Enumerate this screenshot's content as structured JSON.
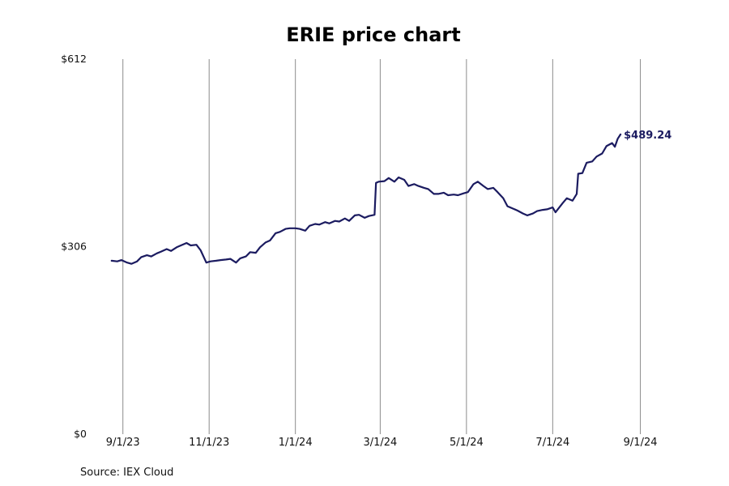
{
  "chart_data": {
    "type": "line",
    "title": "ERIE price chart",
    "source": "Source: IEX Cloud",
    "xlabel": "",
    "ylabel": "",
    "ylim": [
      0,
      612
    ],
    "y_ticks": [
      {
        "value": 0,
        "label": "$0"
      },
      {
        "value": 306,
        "label": "$306"
      },
      {
        "value": 612,
        "label": "$612"
      }
    ],
    "x_range": [
      "2023-08-27",
      "2024-09-15"
    ],
    "x_ticks": [
      {
        "date": "2023-09-01",
        "label": "9/1/23"
      },
      {
        "date": "2023-11-01",
        "label": "11/1/23"
      },
      {
        "date": "2024-01-01",
        "label": "1/1/24"
      },
      {
        "date": "2024-03-01",
        "label": "3/1/24"
      },
      {
        "date": "2024-05-01",
        "label": "5/1/24"
      },
      {
        "date": "2024-07-01",
        "label": "7/1/24"
      },
      {
        "date": "2024-09-01",
        "label": "9/1/24"
      }
    ],
    "grid": "vertical",
    "last_label": "$489.24",
    "colors": {
      "line": "#1b1b60",
      "grid": "#8c8c8c",
      "last_label": "#1b1b60"
    },
    "series": [
      {
        "points": [
          [
            "2023-08-24",
            283
          ],
          [
            "2023-08-28",
            282
          ],
          [
            "2023-08-31",
            284
          ],
          [
            "2023-09-04",
            280
          ],
          [
            "2023-09-07",
            278
          ],
          [
            "2023-09-11",
            282
          ],
          [
            "2023-09-14",
            289
          ],
          [
            "2023-09-18",
            292
          ],
          [
            "2023-09-21",
            290
          ],
          [
            "2023-09-25",
            295
          ],
          [
            "2023-09-28",
            298
          ],
          [
            "2023-10-02",
            302
          ],
          [
            "2023-10-05",
            299
          ],
          [
            "2023-10-09",
            305
          ],
          [
            "2023-10-12",
            308
          ],
          [
            "2023-10-16",
            312
          ],
          [
            "2023-10-19",
            308
          ],
          [
            "2023-10-23",
            309
          ],
          [
            "2023-10-26",
            300
          ],
          [
            "2023-10-30",
            280
          ],
          [
            "2023-11-02",
            282
          ],
          [
            "2023-11-06",
            283
          ],
          [
            "2023-11-09",
            284
          ],
          [
            "2023-11-13",
            285
          ],
          [
            "2023-11-16",
            286
          ],
          [
            "2023-11-20",
            280
          ],
          [
            "2023-11-23",
            287
          ],
          [
            "2023-11-27",
            290
          ],
          [
            "2023-11-30",
            297
          ],
          [
            "2023-12-04",
            296
          ],
          [
            "2023-12-07",
            305
          ],
          [
            "2023-12-11",
            313
          ],
          [
            "2023-12-14",
            316
          ],
          [
            "2023-12-18",
            328
          ],
          [
            "2023-12-21",
            330
          ],
          [
            "2023-12-25",
            335
          ],
          [
            "2023-12-28",
            336
          ],
          [
            "2024-01-01",
            336
          ],
          [
            "2024-01-04",
            335
          ],
          [
            "2024-01-08",
            332
          ],
          [
            "2024-01-11",
            340
          ],
          [
            "2024-01-15",
            343
          ],
          [
            "2024-01-18",
            342
          ],
          [
            "2024-01-22",
            346
          ],
          [
            "2024-01-25",
            344
          ],
          [
            "2024-01-29",
            348
          ],
          [
            "2024-02-01",
            347
          ],
          [
            "2024-02-05",
            352
          ],
          [
            "2024-02-08",
            348
          ],
          [
            "2024-02-12",
            357
          ],
          [
            "2024-02-15",
            358
          ],
          [
            "2024-02-19",
            353
          ],
          [
            "2024-02-22",
            356
          ],
          [
            "2024-02-26",
            358
          ],
          [
            "2024-02-27",
            410
          ],
          [
            "2024-02-29",
            412
          ],
          [
            "2024-03-04",
            413
          ],
          [
            "2024-03-07",
            418
          ],
          [
            "2024-03-11",
            412
          ],
          [
            "2024-03-14",
            419
          ],
          [
            "2024-03-18",
            415
          ],
          [
            "2024-03-21",
            405
          ],
          [
            "2024-03-25",
            408
          ],
          [
            "2024-03-28",
            405
          ],
          [
            "2024-04-01",
            402
          ],
          [
            "2024-04-04",
            400
          ],
          [
            "2024-04-08",
            392
          ],
          [
            "2024-04-11",
            392
          ],
          [
            "2024-04-15",
            394
          ],
          [
            "2024-04-18",
            390
          ],
          [
            "2024-04-22",
            391
          ],
          [
            "2024-04-25",
            390
          ],
          [
            "2024-04-29",
            393
          ],
          [
            "2024-05-02",
            395
          ],
          [
            "2024-05-06",
            408
          ],
          [
            "2024-05-09",
            412
          ],
          [
            "2024-05-13",
            405
          ],
          [
            "2024-05-16",
            400
          ],
          [
            "2024-05-20",
            402
          ],
          [
            "2024-05-23",
            395
          ],
          [
            "2024-05-27",
            385
          ],
          [
            "2024-05-30",
            372
          ],
          [
            "2024-06-03",
            368
          ],
          [
            "2024-06-06",
            365
          ],
          [
            "2024-06-10",
            360
          ],
          [
            "2024-06-13",
            357
          ],
          [
            "2024-06-17",
            360
          ],
          [
            "2024-06-20",
            364
          ],
          [
            "2024-06-24",
            366
          ],
          [
            "2024-06-27",
            367
          ],
          [
            "2024-07-01",
            370
          ],
          [
            "2024-07-03",
            362
          ],
          [
            "2024-07-08",
            377
          ],
          [
            "2024-07-11",
            385
          ],
          [
            "2024-07-15",
            381
          ],
          [
            "2024-07-18",
            392
          ],
          [
            "2024-07-19",
            425
          ],
          [
            "2024-07-22",
            426
          ],
          [
            "2024-07-25",
            443
          ],
          [
            "2024-07-29",
            445
          ],
          [
            "2024-08-01",
            453
          ],
          [
            "2024-08-05",
            458
          ],
          [
            "2024-08-08",
            470
          ],
          [
            "2024-08-12",
            475
          ],
          [
            "2024-08-14",
            469
          ],
          [
            "2024-08-16",
            482
          ],
          [
            "2024-08-18",
            489.24
          ]
        ]
      }
    ]
  }
}
